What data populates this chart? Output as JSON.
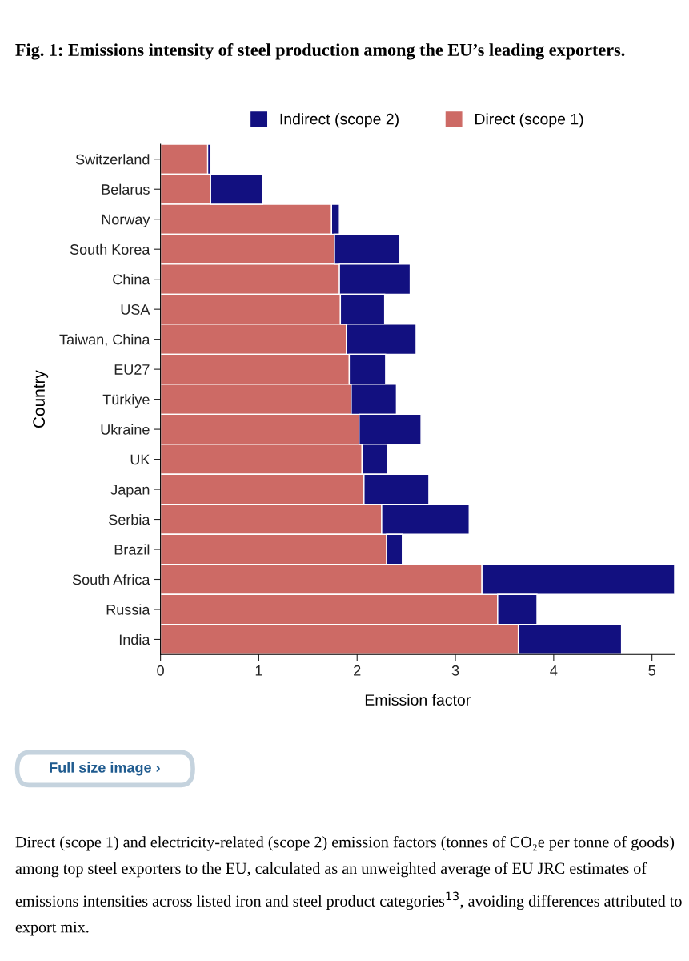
{
  "chart_data": {
    "type": "bar",
    "orientation": "horizontal",
    "stacked": true,
    "title": "Fig. 1: Emissions intensity of steel production among the EU’s leading exporters.",
    "xlabel": "Emission factor",
    "ylabel": "Country",
    "categories": [
      "Switzerland",
      "Belarus",
      "Norway",
      "South Korea",
      "China",
      "USA",
      "Taiwan, China",
      "EU27",
      "Türkiye",
      "Ukraine",
      "UK",
      "Japan",
      "Serbia",
      "Brazil",
      "South Africa",
      "Russia",
      "India"
    ],
    "series": [
      {
        "name": "Direct (scope 1)",
        "color": "#cd6a65",
        "values": [
          0.48,
          0.51,
          1.74,
          1.77,
          1.82,
          1.83,
          1.89,
          1.92,
          1.94,
          2.02,
          2.05,
          2.07,
          2.25,
          2.3,
          3.27,
          3.43,
          3.64
        ]
      },
      {
        "name": "Indirect (scope 2)",
        "color": "#121080",
        "values": [
          0.03,
          0.53,
          0.08,
          0.66,
          0.72,
          0.45,
          0.71,
          0.37,
          0.46,
          0.63,
          0.26,
          0.66,
          0.89,
          0.16,
          1.96,
          0.4,
          1.05
        ]
      }
    ],
    "xlim": [
      0,
      5.23
    ],
    "xticks": [
      0,
      1,
      2,
      3,
      4,
      5
    ],
    "grid": false,
    "legend": "top",
    "annotations": [
      "Full size image ›",
      "Direct (scope 1) and electricity-related (scope 2) emission factors (tonnes of CO₂e per tonne of goods) among top steel exporters to the EU, calculated as an unweighted average of EU JRC estimates of emissions intensities across listed iron and steel product categories$^{13}$, avoiding differences attributed to export mix."
    ]
  }
}
